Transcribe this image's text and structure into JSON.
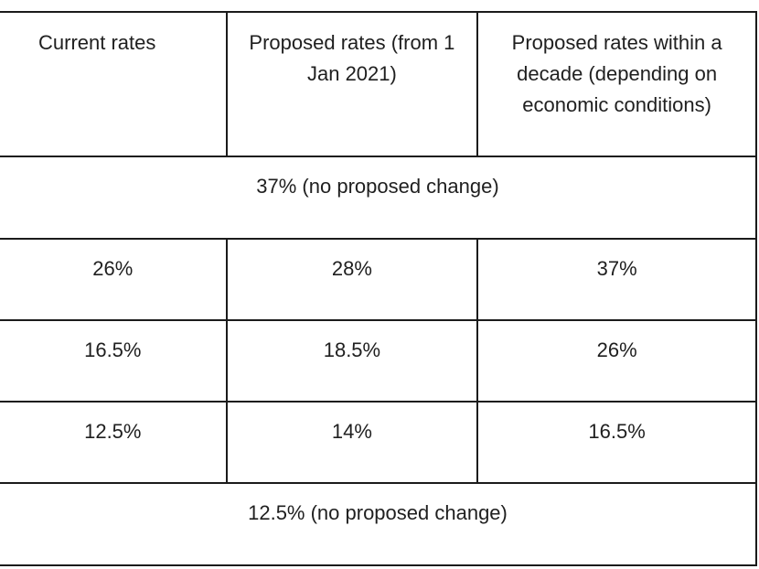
{
  "table": {
    "headers": [
      "Current rates",
      "Proposed rates (from 1 Jan 2021)",
      "Proposed rates within a decade (depending on economic conditions)"
    ],
    "rows": [
      {
        "span": true,
        "text": "37% (no proposed change)"
      },
      {
        "span": false,
        "cells": [
          "26%",
          "28%",
          "37%"
        ]
      },
      {
        "span": false,
        "cells": [
          "16.5%",
          "18.5%",
          "26%"
        ]
      },
      {
        "span": false,
        "cells": [
          "12.5%",
          "14%",
          "16.5%"
        ]
      },
      {
        "span": true,
        "text": "12.5% (no proposed change)"
      }
    ]
  }
}
